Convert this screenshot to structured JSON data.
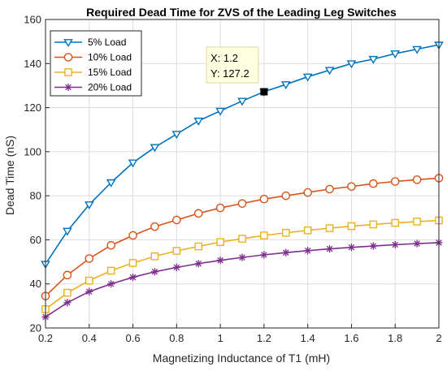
{
  "chart_data": {
    "type": "line",
    "title": "Required Dead Time for ZVS of the Leading Leg Switches",
    "xlabel": "Magnetizing Inductance of T1 (mH)",
    "ylabel": "Dead Time (nS)",
    "xlim": [
      0.2,
      2
    ],
    "ylim": [
      20,
      160
    ],
    "xticks": [
      "0.2",
      "0.4",
      "0.6",
      "0.8",
      "1",
      "1.2",
      "1.4",
      "1.6",
      "1.8",
      "2"
    ],
    "yticks": [
      "20",
      "40",
      "60",
      "80",
      "100",
      "120",
      "140",
      "160"
    ],
    "grid": true,
    "legend_position": "top-left",
    "x": [
      0.2,
      0.3,
      0.4,
      0.5,
      0.6,
      0.7,
      0.8,
      0.9,
      1.0,
      1.1,
      1.2,
      1.3,
      1.4,
      1.5,
      1.6,
      1.7,
      1.8,
      1.9,
      2.0
    ],
    "series": [
      {
        "name": "5% Load",
        "color": "#0072BD",
        "marker": "triangle-down",
        "values": [
          49,
          64,
          76,
          86,
          95,
          102,
          108,
          114,
          118.5,
          123,
          127.2,
          130.5,
          134,
          137,
          140,
          142,
          144.5,
          146.5,
          148.5
        ]
      },
      {
        "name": "10% Load",
        "color": "#D95319",
        "marker": "circle",
        "values": [
          34.5,
          44,
          51.5,
          57.5,
          62,
          66,
          69,
          72,
          74.5,
          76.5,
          78.5,
          80,
          81.5,
          83,
          84.2,
          85.5,
          86.5,
          87.3,
          88
        ]
      },
      {
        "name": "15% Load",
        "color": "#EDB120",
        "marker": "square",
        "values": [
          28.5,
          36,
          41.5,
          46,
          49.5,
          52.5,
          55,
          57,
          59,
          60.5,
          62,
          63.2,
          64.3,
          65.3,
          66.2,
          67,
          67.7,
          68.3,
          68.8
        ]
      },
      {
        "name": "20% Load",
        "color": "#7E2F8E",
        "marker": "asterisk",
        "values": [
          25,
          31.5,
          36.5,
          40,
          43,
          45.5,
          47.5,
          49.2,
          50.7,
          52,
          53.2,
          54.2,
          55.1,
          55.9,
          56.6,
          57.2,
          57.8,
          58.3,
          58.7
        ]
      }
    ],
    "datatip": {
      "x_label": "X: 1.2",
      "y_label": "Y: 127.2",
      "x": 1.2,
      "y": 127.2
    }
  }
}
